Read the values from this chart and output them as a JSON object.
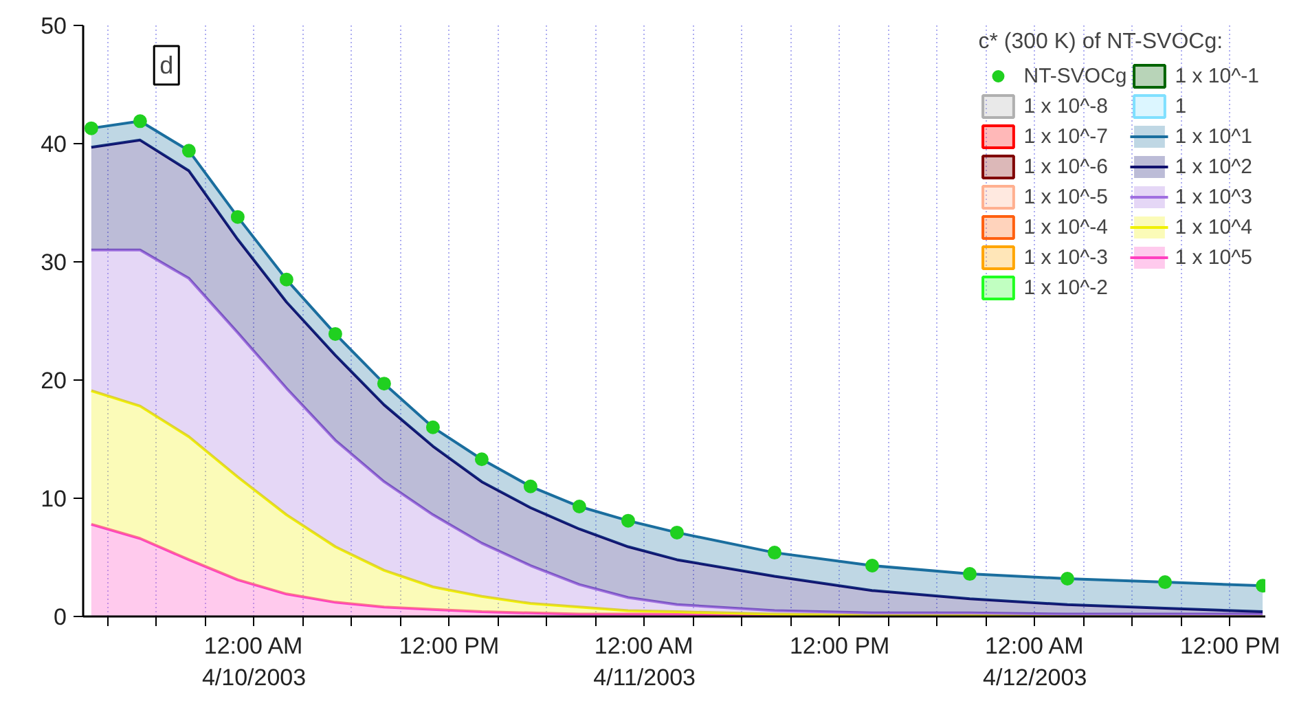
{
  "chart_data": {
    "type": "area",
    "stacked": true,
    "legend": "top right",
    "grid": "x",
    "legend_title": "c* (300 K) of NT-SVOCg:",
    "annotations": [
      "d"
    ],
    "x": [
      "2003-04-09T14:00",
      "2003-04-09T17:00",
      "2003-04-09T20:00",
      "2003-04-09T23:00",
      "2003-04-10T02:00",
      "2003-04-10T05:00",
      "2003-04-10T08:00",
      "2003-04-10T11:00",
      "2003-04-10T14:00",
      "2003-04-10T17:00",
      "2003-04-10T20:00",
      "2003-04-10T23:00",
      "2003-04-11T02:00",
      "2003-04-11T08:00",
      "2003-04-11T14:00",
      "2003-04-11T20:00",
      "2003-04-12T02:00",
      "2003-04-12T08:00",
      "2003-04-12T14:00"
    ],
    "xlim": [
      "2003-04-09T13:30",
      "2003-04-12T14:10"
    ],
    "xticks": [
      {
        "value": "2003-04-09T15:00",
        "label": null
      },
      {
        "value": "2003-04-09T18:00",
        "label": null
      },
      {
        "value": "2003-04-09T21:00",
        "label": null
      },
      {
        "value": "2003-04-10T00:00",
        "label": "12:00 AM\n4/10/2003"
      },
      {
        "value": "2003-04-10T03:00",
        "label": null
      },
      {
        "value": "2003-04-10T06:00",
        "label": null
      },
      {
        "value": "2003-04-10T09:00",
        "label": null
      },
      {
        "value": "2003-04-10T12:00",
        "label": "12:00 PM"
      },
      {
        "value": "2003-04-10T15:00",
        "label": null
      },
      {
        "value": "2003-04-10T18:00",
        "label": null
      },
      {
        "value": "2003-04-10T21:00",
        "label": null
      },
      {
        "value": "2003-04-11T00:00",
        "label": "12:00 AM\n4/11/2003"
      },
      {
        "value": "2003-04-11T03:00",
        "label": null
      },
      {
        "value": "2003-04-11T06:00",
        "label": null
      },
      {
        "value": "2003-04-11T09:00",
        "label": null
      },
      {
        "value": "2003-04-11T12:00",
        "label": "12:00 PM"
      },
      {
        "value": "2003-04-11T15:00",
        "label": null
      },
      {
        "value": "2003-04-11T18:00",
        "label": null
      },
      {
        "value": "2003-04-11T21:00",
        "label": null
      },
      {
        "value": "2003-04-12T00:00",
        "label": "12:00 AM\n4/12/2003"
      },
      {
        "value": "2003-04-12T03:00",
        "label": null
      },
      {
        "value": "2003-04-12T06:00",
        "label": null
      },
      {
        "value": "2003-04-12T09:00",
        "label": null
      },
      {
        "value": "2003-04-12T12:00",
        "label": "12:00 PM"
      }
    ],
    "ylim": [
      0,
      50
    ],
    "yticks": [
      0,
      10,
      20,
      30,
      40,
      50
    ],
    "series": [
      {
        "name": "1 x 10^5",
        "color": "#ff40c0",
        "values": [
          7.8,
          6.6,
          4.8,
          3.1,
          1.9,
          1.2,
          0.8,
          0.6,
          0.4,
          0.3,
          0.2,
          0.2,
          0.2,
          0.1,
          0.1,
          0.1,
          0.1,
          0.1,
          0.1
        ]
      },
      {
        "name": "1 x 10^4",
        "color": "#f0f000",
        "values": [
          11.3,
          11.2,
          10.4,
          8.7,
          6.7,
          4.7,
          3.1,
          1.9,
          1.3,
          0.8,
          0.6,
          0.3,
          0.2,
          0.1,
          0,
          0,
          0,
          0,
          0
        ]
      },
      {
        "name": "1 x 10^3",
        "color": "#a070e0",
        "values": [
          11.9,
          13.2,
          13.4,
          12.2,
          10.7,
          9.0,
          7.5,
          6.1,
          4.5,
          3.2,
          1.9,
          1.1,
          0.6,
          0.3,
          0.2,
          0.2,
          0.1,
          0.1,
          0.1
        ]
      },
      {
        "name": "1 x 10^2",
        "color": "#10106e",
        "values": [
          8.7,
          9.3,
          9.1,
          7.9,
          7.3,
          7.2,
          6.5,
          5.8,
          5.2,
          4.9,
          4.7,
          4.3,
          3.8,
          2.9,
          1.9,
          1.2,
          0.8,
          0.5,
          0.2
        ]
      },
      {
        "name": "1 x 10^1",
        "color": "#1a6e9e",
        "values": [
          1.6,
          1.6,
          1.7,
          1.9,
          1.9,
          1.8,
          1.8,
          1.6,
          1.9,
          1.8,
          1.9,
          2.2,
          2.3,
          2.0,
          2.1,
          2.1,
          2.2,
          2.2,
          2.2
        ]
      },
      {
        "name": "1",
        "color": "#80e0ff",
        "values": [
          null,
          null,
          null,
          null,
          null,
          null,
          null,
          null,
          null,
          null,
          null,
          null,
          null,
          null,
          null,
          null,
          null,
          null,
          null
        ]
      },
      {
        "name": "1 x 10^-1",
        "color": "#006400",
        "values": [
          null,
          null,
          null,
          null,
          null,
          null,
          null,
          null,
          null,
          null,
          null,
          null,
          null,
          null,
          null,
          null,
          null,
          null,
          null
        ]
      },
      {
        "name": "1 x 10^-2",
        "color": "#20ff20",
        "values": [
          null,
          null,
          null,
          null,
          null,
          null,
          null,
          null,
          null,
          null,
          null,
          null,
          null,
          null,
          null,
          null,
          null,
          null,
          null
        ]
      },
      {
        "name": "1 x 10^-3",
        "color": "#ffa500",
        "values": [
          null,
          null,
          null,
          null,
          null,
          null,
          null,
          null,
          null,
          null,
          null,
          null,
          null,
          null,
          null,
          null,
          null,
          null,
          null
        ]
      },
      {
        "name": "1 x 10^-4",
        "color": "#ff6010",
        "values": [
          null,
          null,
          null,
          null,
          null,
          null,
          null,
          null,
          null,
          null,
          null,
          null,
          null,
          null,
          null,
          null,
          null,
          null,
          null
        ]
      },
      {
        "name": "1 x 10^-5",
        "color": "#ffb090",
        "values": [
          null,
          null,
          null,
          null,
          null,
          null,
          null,
          null,
          null,
          null,
          null,
          null,
          null,
          null,
          null,
          null,
          null,
          null,
          null
        ]
      },
      {
        "name": "1 x 10^-6",
        "color": "#800000",
        "values": [
          null,
          null,
          null,
          null,
          null,
          null,
          null,
          null,
          null,
          null,
          null,
          null,
          null,
          null,
          null,
          null,
          null,
          null,
          null
        ]
      },
      {
        "name": "1 x 10^-7",
        "color": "#ff0000",
        "values": [
          null,
          null,
          null,
          null,
          null,
          null,
          null,
          null,
          null,
          null,
          null,
          null,
          null,
          null,
          null,
          null,
          null,
          null,
          null
        ]
      },
      {
        "name": "1 x 10^-8",
        "color": "#b0b0b0",
        "values": [
          null,
          null,
          null,
          null,
          null,
          null,
          null,
          null,
          null,
          null,
          null,
          null,
          null,
          null,
          null,
          null,
          null,
          null,
          null
        ]
      },
      {
        "name": "NT-SVOCg",
        "type": "scatter",
        "marker": "circle",
        "color": "#20d020",
        "values": [
          41.3,
          41.9,
          39.4,
          33.8,
          28.5,
          23.9,
          19.7,
          16.0,
          13.3,
          11.0,
          9.3,
          8.1,
          7.1,
          5.4,
          4.3,
          3.6,
          3.2,
          2.9,
          2.6
        ]
      }
    ]
  }
}
